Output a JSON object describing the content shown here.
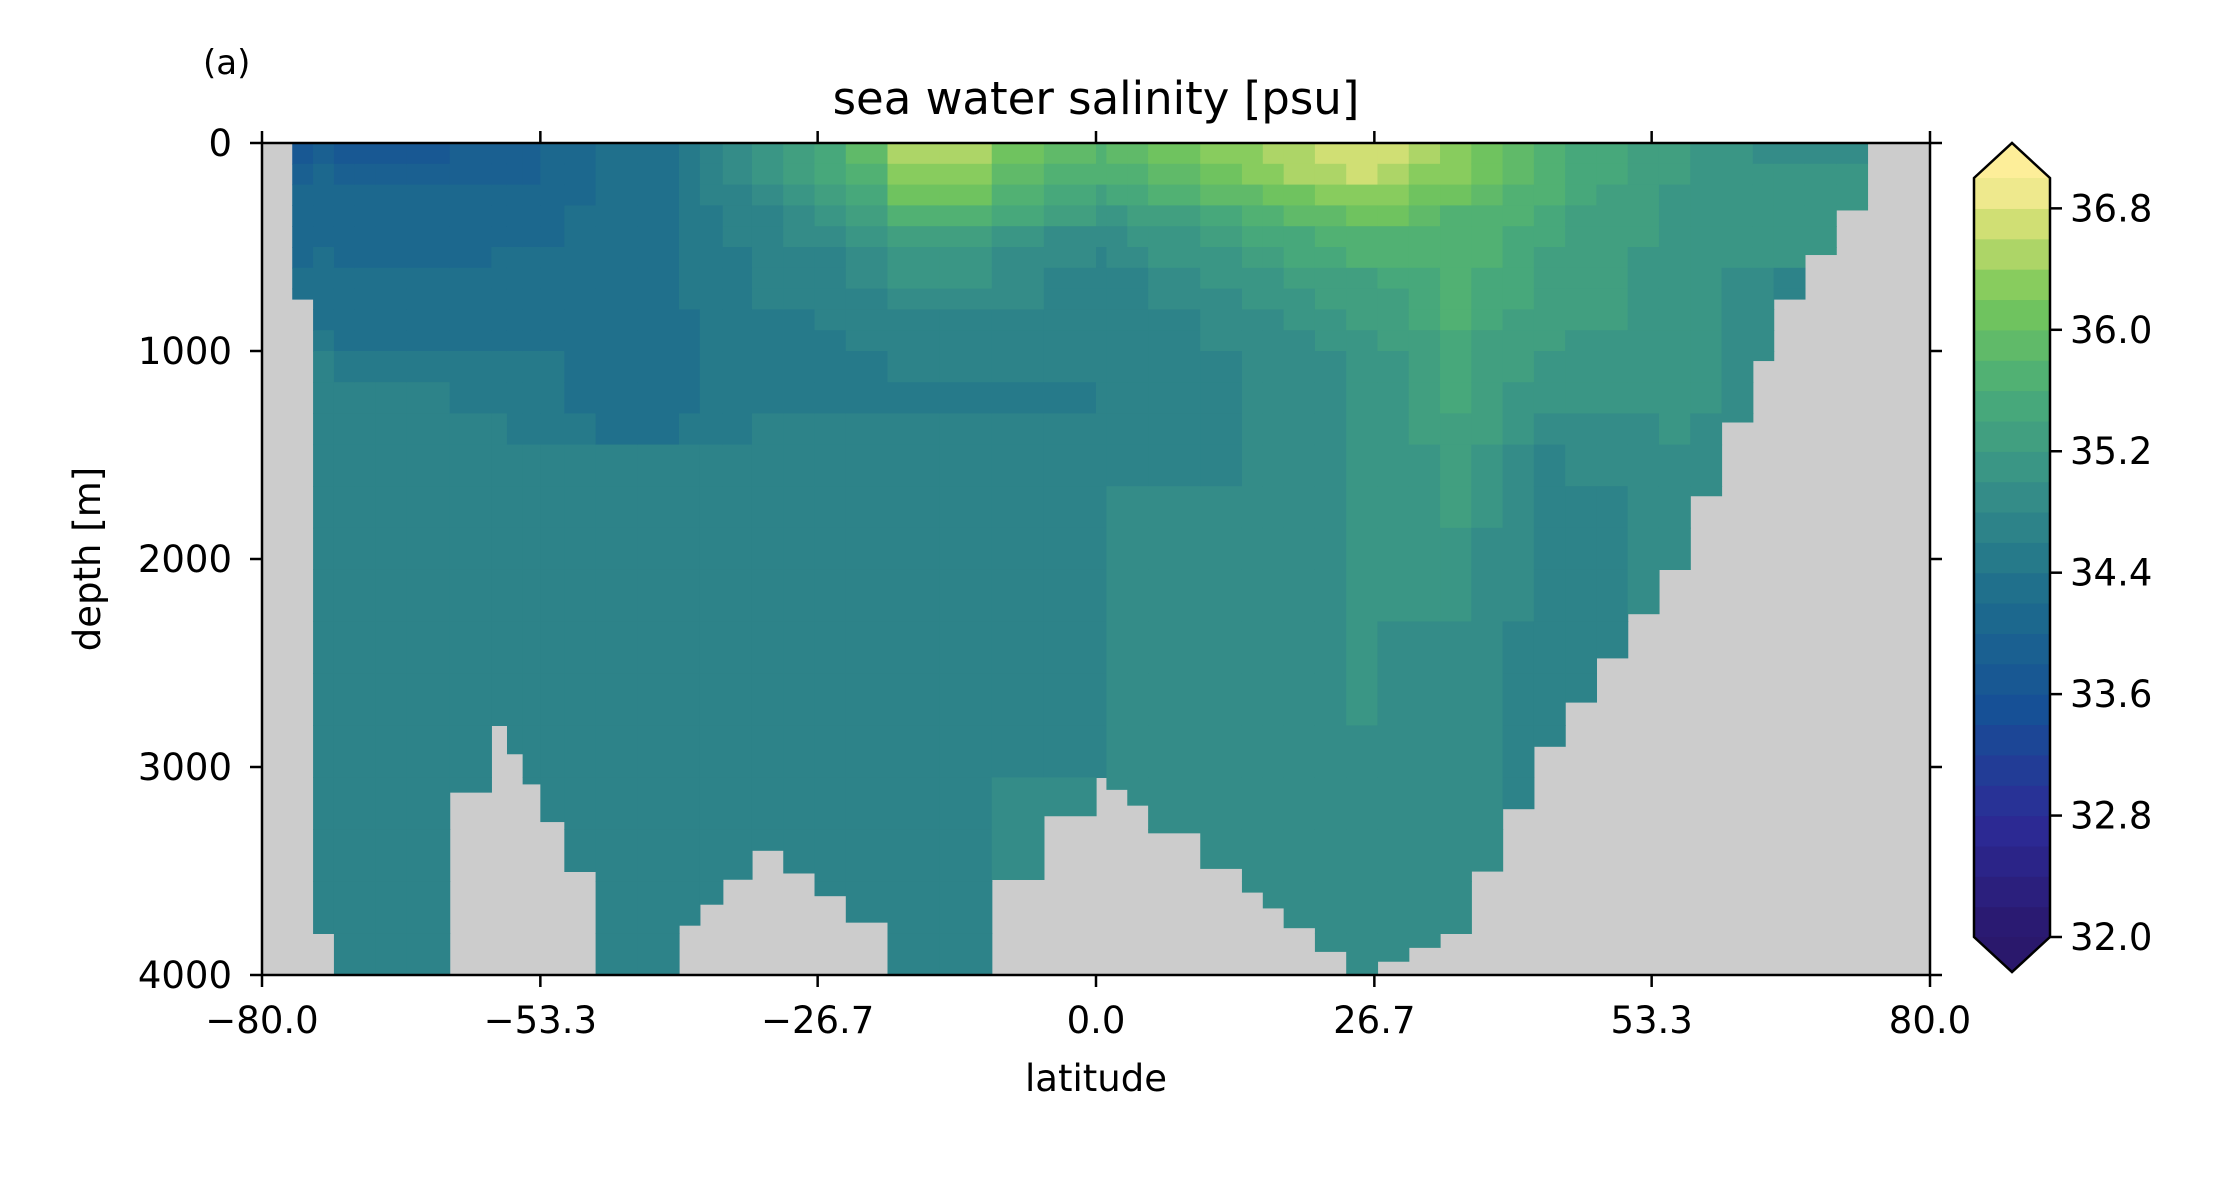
{
  "panel_label": "(a)",
  "chart_data": {
    "type": "heatmap",
    "title": "sea water salinity [psu]",
    "xlabel": "latitude",
    "ylabel": "depth [m]",
    "xlim": [
      -80,
      80
    ],
    "ylim": [
      4000,
      0
    ],
    "y_inverted": true,
    "x_ticks": [
      "−80.0",
      "−53.3",
      "−26.7",
      "0.0",
      "26.7",
      "53.3",
      "80.0"
    ],
    "x_tick_values": [
      -80,
      -53.3,
      -26.7,
      0,
      26.7,
      53.3,
      80
    ],
    "y_ticks": [
      "0",
      "1000",
      "2000",
      "3000",
      "4000"
    ],
    "y_tick_values": [
      0,
      1000,
      2000,
      3000,
      4000
    ],
    "grid": false,
    "land_color": "#cccccc",
    "colorbar": {
      "min": 32.0,
      "max": 37.0,
      "step": 0.2,
      "extend": "both",
      "cmap": "haline",
      "location": "right",
      "tick_labels": [
        "32.0",
        "32.8",
        "33.6",
        "34.4",
        "35.2",
        "36.0",
        "36.8"
      ],
      "tick_values": [
        32.0,
        32.8,
        33.6,
        34.4,
        35.2,
        36.0,
        36.8
      ]
    },
    "depth_levels_m": [
      0,
      100,
      200,
      300,
      400,
      500,
      600,
      700,
      800,
      900,
      1000,
      1150,
      1300,
      1450,
      1650,
      1850,
      2050,
      2300,
      2550,
      2800,
      3050,
      3300,
      3550,
      3800,
      4000
    ],
    "lat_edges": [
      -80,
      -77.1,
      -75.1,
      -73.1,
      -71.1,
      -69.1,
      -66.1,
      -62,
      -58,
      -56.5,
      -55,
      -53.3,
      -51,
      -48,
      -44,
      -40,
      -38,
      -35.8,
      -33,
      -30,
      -27,
      -24,
      -20,
      -15,
      -10,
      -5,
      0,
      1,
      3,
      5,
      10,
      14,
      16,
      18,
      21,
      24,
      27,
      30,
      33,
      36,
      39,
      42,
      45,
      48,
      51,
      54,
      57,
      60,
      63,
      65,
      68,
      71,
      74,
      80
    ],
    "salinity_profiles": [
      {
        "lat": [
          -80,
          -77.1
        ],
        "seafloor_m": 0,
        "values": []
      },
      {
        "lat": [
          -77.1,
          -75.1
        ],
        "seafloor_m": 750,
        "values": [
          33.8,
          33.9,
          34.0,
          34.0,
          34.1,
          34.1,
          34.2
        ]
      },
      {
        "lat": [
          -75.1,
          -73.1
        ],
        "seafloor_m": 3800,
        "values": [
          33.9,
          34.0,
          34.0,
          34.1,
          34.1,
          34.2,
          34.2,
          34.3,
          34.4,
          34.5,
          34.6,
          34.6,
          34.6,
          34.6,
          34.6,
          34.6,
          34.6,
          34.6,
          34.6,
          34.6,
          34.6,
          34.6,
          34.6,
          34.6
        ]
      },
      {
        "lat": [
          -73.1,
          -62
        ],
        "seafloor_m": 4000,
        "values": [
          33.8,
          33.9,
          34.0,
          34.0,
          34.1,
          34.1,
          34.2,
          34.2,
          34.3,
          34.4,
          34.5,
          34.6,
          34.6,
          34.6,
          34.6,
          34.6,
          34.6,
          34.6,
          34.6,
          34.6,
          34.6,
          34.6,
          34.6,
          34.7
        ]
      },
      {
        "lat": [
          -58,
          -56.5
        ],
        "seafloor_m": 2800,
        "values": [
          33.9,
          33.9,
          34.0,
          34.1,
          34.1,
          34.2,
          34.2,
          34.3,
          34.3,
          34.4,
          34.5,
          34.5,
          34.6,
          34.6,
          34.6,
          34.6,
          34.6,
          34.6,
          34.6,
          34.6
        ]
      },
      {
        "lat": [
          -48,
          -40
        ],
        "seafloor_m": 4000,
        "values": [
          34.2,
          34.2,
          34.3,
          34.3,
          34.3,
          34.3,
          34.3,
          34.3,
          34.3,
          34.3,
          34.3,
          34.3,
          34.4,
          34.6,
          34.6,
          34.6,
          34.6,
          34.6,
          34.6,
          34.6,
          34.6,
          34.6,
          34.6,
          34.6
        ]
      },
      {
        "lat": [
          -33,
          -30
        ],
        "seafloor_m": 3400,
        "values": [
          35.0,
          35.0,
          34.9,
          34.8,
          34.7,
          34.6,
          34.6,
          34.6,
          34.5,
          34.5,
          34.5,
          34.5,
          34.6,
          34.6,
          34.7,
          34.7,
          34.8,
          34.8,
          34.8,
          34.8,
          34.8,
          34.8
        ]
      },
      {
        "lat": [
          -20,
          -10
        ],
        "seafloor_m": 4000,
        "values": [
          36.5,
          36.3,
          36.0,
          35.7,
          35.3,
          35.1,
          35.0,
          34.9,
          34.8,
          34.7,
          34.6,
          34.5,
          34.6,
          34.7,
          34.8,
          34.8,
          34.8,
          34.8,
          34.8,
          34.8,
          34.8,
          34.8,
          34.8,
          34.8
        ]
      },
      {
        "lat": [
          0,
          1
        ],
        "seafloor_m": 3050,
        "values": [
          35.8,
          35.6,
          35.4,
          35.1,
          34.9,
          34.8,
          34.7,
          34.7,
          34.6,
          34.6,
          34.6,
          34.6,
          34.6,
          34.6,
          34.8,
          34.8,
          34.8,
          34.8,
          34.8,
          34.8,
          34.9
        ]
      },
      {
        "lat": [
          24,
          27
        ],
        "seafloor_m": 4000,
        "values": [
          36.8,
          36.7,
          36.4,
          36.1,
          35.8,
          35.6,
          35.4,
          35.3,
          35.2,
          35.1,
          35.0,
          35.0,
          35.0,
          35.0,
          35.0,
          35.0,
          35.0,
          35.0,
          35.0,
          34.9,
          34.9,
          34.9,
          34.9,
          34.9
        ]
      },
      {
        "lat": [
          33,
          36
        ],
        "seafloor_m": 3800,
        "values": [
          36.4,
          36.2,
          36.0,
          35.8,
          35.7,
          35.7,
          35.6,
          35.6,
          35.6,
          35.5,
          35.5,
          35.5,
          35.4,
          35.3,
          35.2,
          35.1,
          35.0,
          34.9,
          34.9,
          34.9,
          34.9,
          34.9,
          34.9,
          34.9
        ]
      },
      {
        "lat": [
          42,
          45
        ],
        "seafloor_m": 2900,
        "values": [
          35.6,
          35.6,
          35.6,
          35.5,
          35.5,
          35.4,
          35.4,
          35.4,
          35.3,
          35.2,
          35.1,
          35.0,
          34.9,
          34.8,
          34.7,
          34.7,
          34.7,
          34.7,
          34.7,
          34.7
        ]
      },
      {
        "lat": [
          54,
          57
        ],
        "seafloor_m": 2050,
        "values": [
          35.2,
          35.2,
          35.1,
          35.1,
          35.1,
          35.1,
          35.1,
          35.1,
          35.1,
          35.1,
          35.1,
          35.1,
          35.0,
          34.9,
          34.9,
          34.9,
          34.9
        ]
      },
      {
        "lat": [
          65,
          68
        ],
        "seafloor_m": 750,
        "values": [
          34.9,
          35.0,
          35.0,
          35.0,
          35.0,
          35.0,
          34.8
        ]
      },
      {
        "lat": [
          74,
          80
        ],
        "seafloor_m": 0,
        "values": []
      }
    ]
  }
}
